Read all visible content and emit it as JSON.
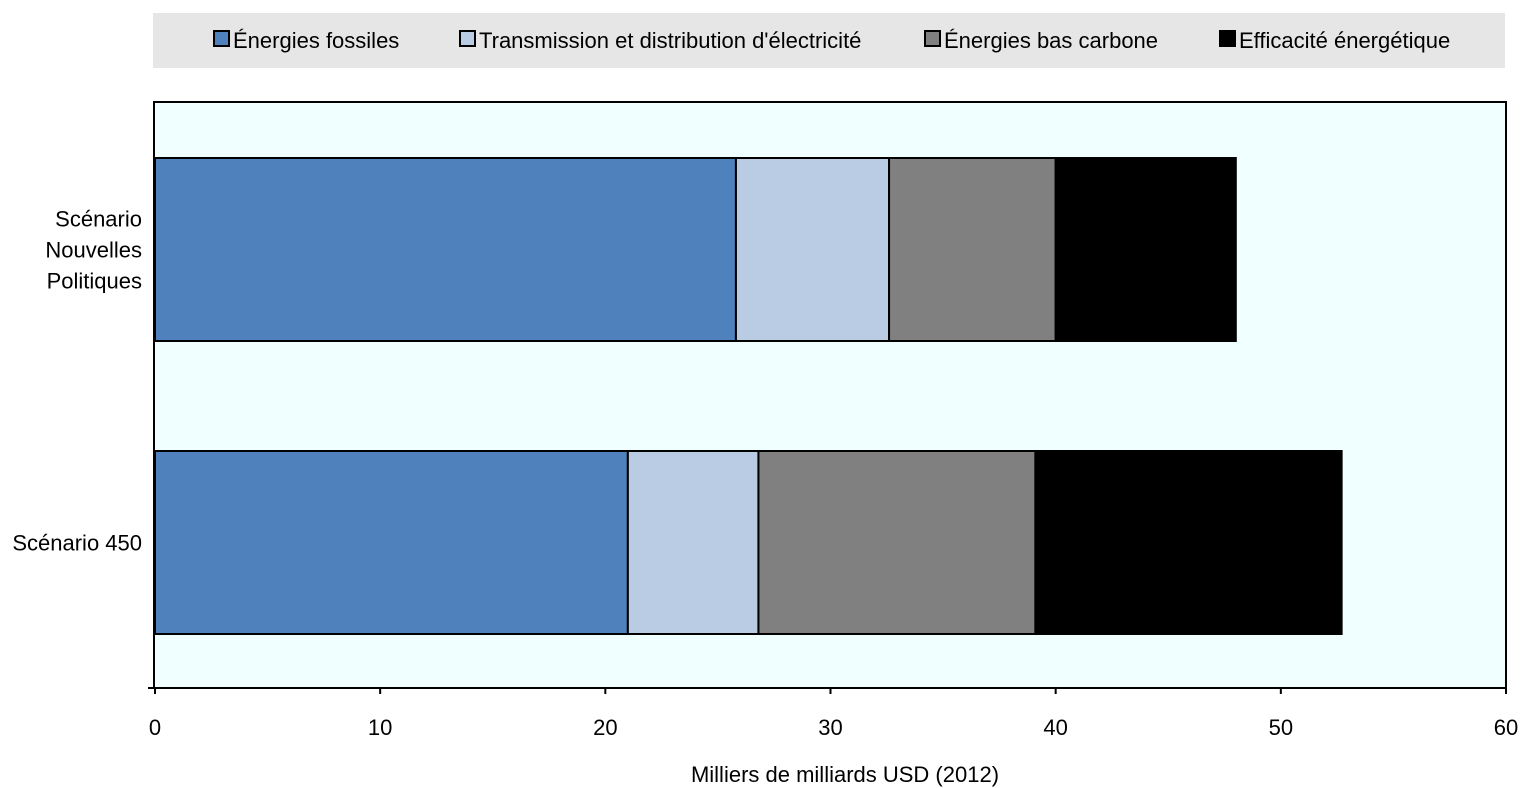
{
  "chart_data": {
    "type": "bar",
    "orientation": "horizontal",
    "stacked": true,
    "categories": [
      "Scénario Nouvelles Politiques",
      "Scénario 450"
    ],
    "category_label_lines": [
      [
        "Scénario",
        "Nouvelles",
        "Politiques"
      ],
      [
        "Scénario 450"
      ]
    ],
    "series": [
      {
        "name": "Énergies fossiles",
        "color": "#4f81bd",
        "values": [
          25.8,
          21.0
        ]
      },
      {
        "name": "Transmission et distribution d'électricité",
        "color": "#b9cce4",
        "values": [
          6.8,
          5.8
        ]
      },
      {
        "name": "Énergies bas carbone",
        "color": "#808080",
        "values": [
          7.4,
          12.3
        ]
      },
      {
        "name": "Efficacité énergétique",
        "color": "#000000",
        "values": [
          8.0,
          13.6
        ]
      }
    ],
    "xlabel": "Milliers de milliards USD (2012)",
    "ylabel": "",
    "xlim": [
      0,
      60
    ],
    "xticks": [
      0,
      10,
      20,
      30,
      40,
      50,
      60
    ],
    "grid": false,
    "legend_position": "top",
    "plot_background": "#f0ffff",
    "legend_background": "#e6e6e6"
  }
}
